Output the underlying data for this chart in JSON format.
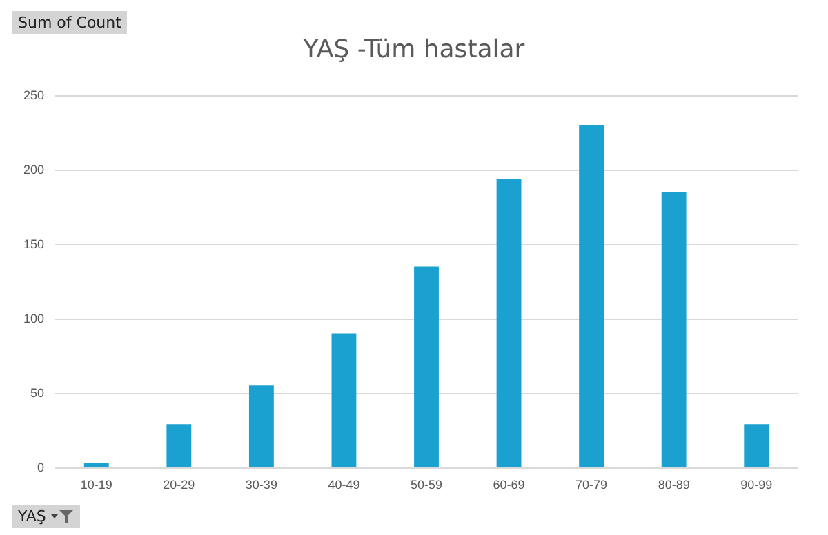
{
  "chart_data": {
    "type": "bar",
    "title": "YAŞ -Tüm hastalar",
    "xlabel": "YAŞ",
    "ylabel": "Sum of Count",
    "categories": [
      "10-19",
      "20-29",
      "30-39",
      "40-49",
      "50-59",
      "60-69",
      "70-79",
      "80-89",
      "90-99"
    ],
    "values": [
      3,
      29,
      55,
      90,
      135,
      194,
      230,
      185,
      29
    ],
    "color": "#1ba1d0",
    "ylim": [
      0,
      250
    ],
    "yticks": [
      0,
      50,
      100,
      150,
      200,
      250
    ],
    "grid": "y"
  }
}
